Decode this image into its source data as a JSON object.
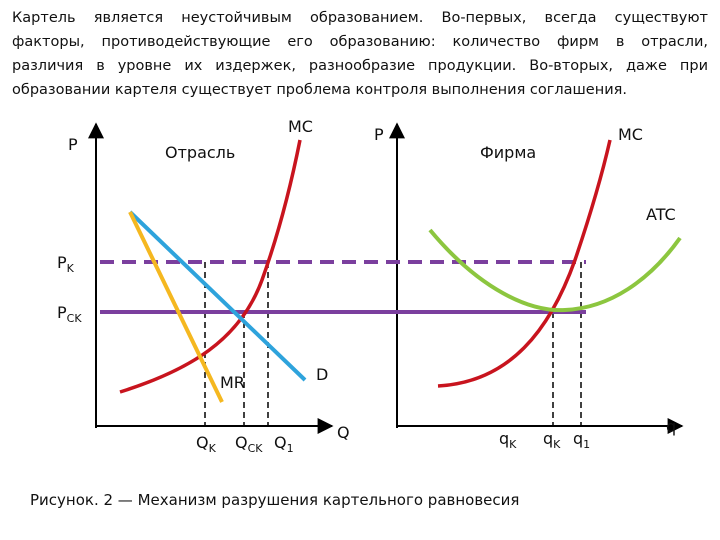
{
  "paragraph": [
    "Картель является неустойчивым образованием. Во-первых, всегда существуют",
    "факторы, противодействующие его образованию: количество фирм в отрасли,",
    "различия в уровне их издержек, разнообразие продукции. Во-вторых, даже при",
    "образовании картеля существует проблема контроля выполнения соглашения."
  ],
  "left_panel": {
    "y_axis": "P",
    "title": "Отрасль",
    "mc": "MC",
    "d": "D",
    "mr": "MR",
    "x_axis": "Q",
    "x_labels": [
      {
        "main": "Q",
        "sub": "K"
      },
      {
        "main": "Q",
        "sub": "CK"
      },
      {
        "main": "Q",
        "sub": "1"
      }
    ]
  },
  "prices": [
    {
      "main": "P",
      "sub": "K"
    },
    {
      "main": "P",
      "sub": "CK"
    }
  ],
  "right_panel": {
    "y_axis": "P",
    "title": "Фирма",
    "mc": "MC",
    "atc": "ATC",
    "x_axis": "q",
    "x_labels": [
      {
        "main": "q",
        "sub": "K"
      },
      {
        "main": "q",
        "sub": "K"
      },
      {
        "main": "q",
        "sub": "1"
      }
    ]
  },
  "caption": "Рисунок. 2 — Механизм разрушения картельного равновесия"
}
